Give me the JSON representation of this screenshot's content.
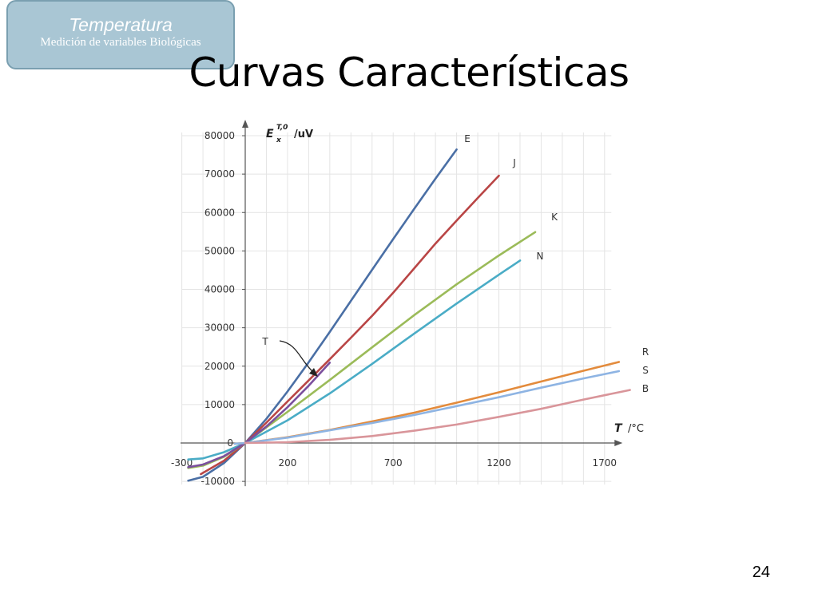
{
  "header_tag": {
    "title": "Temperatura",
    "subtitle": "Medición de variables Biológicas"
  },
  "slide": {
    "title": "Curvas Características",
    "page_number": "24"
  },
  "chart_data": {
    "type": "line",
    "ylabel_main": "E",
    "ylabel_sup": "T,0",
    "ylabel_sub": "x",
    "ylabel_unit": "/uV",
    "xlabel_main": "T",
    "xlabel_unit": "/°C",
    "xlim": [
      -300,
      1800
    ],
    "ylim": [
      -10000,
      80000
    ],
    "x_ticks": [
      -300,
      200,
      700,
      1200,
      1700
    ],
    "y_ticks": [
      -10000,
      0,
      10000,
      20000,
      30000,
      40000,
      50000,
      60000,
      70000,
      80000
    ],
    "zero_label": "0",
    "grid": true,
    "series": [
      {
        "name": "E",
        "color": "#4a6fa5",
        "x": [
          -270,
          -200,
          -100,
          0,
          100,
          200,
          300,
          400,
          500,
          600,
          700,
          800,
          900,
          1000
        ],
        "y": [
          -9800,
          -8800,
          -5200,
          0,
          6300,
          13400,
          21000,
          28900,
          37000,
          45100,
          53100,
          61000,
          68800,
          76400
        ]
      },
      {
        "name": "J",
        "color": "#b94545",
        "x": [
          -210,
          -100,
          0,
          100,
          200,
          300,
          400,
          500,
          600,
          700,
          800,
          900,
          1000,
          1100,
          1200
        ],
        "y": [
          -8100,
          -4600,
          0,
          5300,
          10800,
          16300,
          21800,
          27400,
          33100,
          39100,
          45500,
          51900,
          57900,
          63800,
          69600
        ]
      },
      {
        "name": "K",
        "color": "#9bbb59",
        "x": [
          -270,
          -200,
          -100,
          0,
          200,
          400,
          600,
          800,
          1000,
          1200,
          1372
        ],
        "y": [
          -6500,
          -5900,
          -3600,
          0,
          8100,
          16400,
          24900,
          33300,
          41300,
          48800,
          54900
        ]
      },
      {
        "name": "N",
        "color": "#4aacc6",
        "x": [
          -270,
          -200,
          -100,
          0,
          200,
          400,
          600,
          800,
          1000,
          1200,
          1300
        ],
        "y": [
          -4300,
          -4000,
          -2400,
          0,
          5900,
          12900,
          20600,
          28500,
          36300,
          43800,
          47500
        ]
      },
      {
        "name": "T",
        "color": "#7b4f9d",
        "x": [
          -270,
          -200,
          -100,
          0,
          100,
          200,
          300,
          400
        ],
        "y": [
          -6300,
          -5600,
          -3400,
          0,
          4300,
          9300,
          14900,
          20900
        ]
      },
      {
        "name": "R",
        "color": "#e38b3c",
        "x": [
          -50,
          0,
          200,
          400,
          600,
          800,
          1000,
          1200,
          1400,
          1600,
          1768
        ],
        "y": [
          -200,
          0,
          1500,
          3400,
          5600,
          7900,
          10500,
          13200,
          16000,
          18800,
          21100
        ]
      },
      {
        "name": "S",
        "color": "#8eb4e3",
        "x": [
          -50,
          0,
          200,
          400,
          600,
          800,
          1000,
          1200,
          1400,
          1600,
          1768
        ],
        "y": [
          -200,
          0,
          1400,
          3300,
          5200,
          7300,
          9600,
          11900,
          14400,
          16800,
          18700
        ]
      },
      {
        "name": "B",
        "color": "#d9959a",
        "x": [
          0,
          200,
          400,
          600,
          800,
          1000,
          1200,
          1400,
          1600,
          1820
        ],
        "y": [
          0,
          200,
          800,
          1800,
          3200,
          4800,
          6800,
          8900,
          11300,
          13800
        ]
      }
    ],
    "annotations": [
      {
        "label": "T",
        "points_to": "T"
      }
    ]
  }
}
